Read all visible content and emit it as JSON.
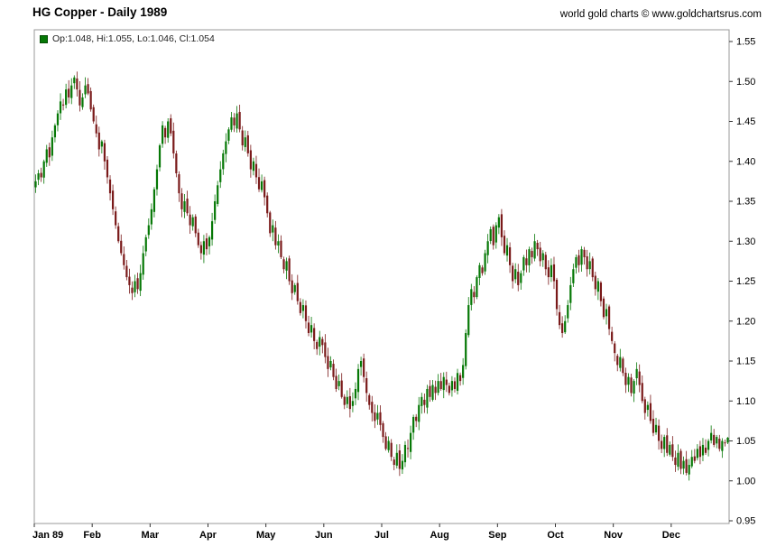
{
  "header": {
    "title": "HG Copper - Daily 1989",
    "watermark": "world gold charts © www.goldchartsrus.com"
  },
  "legend": {
    "label": "Op:1.048, Hi:1.055, Lo:1.046, Cl:1.054",
    "swatch_color": "#067806"
  },
  "chart_data": {
    "type": "candlestick",
    "title": "HG Copper - Daily 1989",
    "xlabel": "",
    "ylabel": "",
    "ylim": [
      0.95,
      1.55
    ],
    "y_ticks": [
      0.95,
      1.0,
      1.05,
      1.1,
      1.15,
      1.2,
      1.25,
      1.3,
      1.35,
      1.4,
      1.45,
      1.5,
      1.55
    ],
    "x_tick_labels": [
      "Jan 89",
      "Feb",
      "Mar",
      "Apr",
      "May",
      "Jun",
      "Jul",
      "Aug",
      "Sep",
      "Oct",
      "Nov",
      "Dec"
    ],
    "days_per_month": 21,
    "up_color": "#067806",
    "down_color": "#7a1a1a",
    "grid": false,
    "legend_position": "top-left",
    "last_bar": {
      "open": 1.048,
      "high": 1.055,
      "low": 1.046,
      "close": 1.054
    },
    "closes": [
      1.375,
      1.385,
      1.38,
      1.4,
      1.415,
      1.405,
      1.43,
      1.445,
      1.46,
      1.475,
      1.47,
      1.49,
      1.48,
      1.495,
      1.505,
      1.49,
      1.47,
      1.48,
      1.495,
      1.485,
      1.465,
      1.45,
      1.435,
      1.415,
      1.425,
      1.4,
      1.38,
      1.36,
      1.34,
      1.32,
      1.3,
      1.285,
      1.27,
      1.255,
      1.245,
      1.235,
      1.25,
      1.24,
      1.26,
      1.285,
      1.305,
      1.32,
      1.34,
      1.365,
      1.39,
      1.42,
      1.445,
      1.43,
      1.45,
      1.435,
      1.41,
      1.385,
      1.36,
      1.34,
      1.35,
      1.335,
      1.32,
      1.33,
      1.31,
      1.295,
      1.285,
      1.3,
      1.29,
      1.305,
      1.325,
      1.35,
      1.37,
      1.39,
      1.41,
      1.425,
      1.44,
      1.455,
      1.445,
      1.46,
      1.44,
      1.42,
      1.43,
      1.41,
      1.39,
      1.4,
      1.38,
      1.365,
      1.375,
      1.355,
      1.335,
      1.31,
      1.32,
      1.295,
      1.3,
      1.28,
      1.265,
      1.275,
      1.25,
      1.235,
      1.245,
      1.225,
      1.21,
      1.22,
      1.2,
      1.185,
      1.195,
      1.175,
      1.165,
      1.18,
      1.17,
      1.155,
      1.14,
      1.15,
      1.13,
      1.115,
      1.125,
      1.105,
      1.095,
      1.105,
      1.09,
      1.1,
      1.115,
      1.14,
      1.15,
      1.13,
      1.11,
      1.095,
      1.085,
      1.075,
      1.085,
      1.07,
      1.055,
      1.04,
      1.05,
      1.03,
      1.02,
      1.035,
      1.015,
      1.025,
      1.045,
      1.04,
      1.06,
      1.08,
      1.075,
      1.095,
      1.105,
      1.095,
      1.115,
      1.105,
      1.12,
      1.11,
      1.125,
      1.115,
      1.13,
      1.12,
      1.11,
      1.125,
      1.115,
      1.135,
      1.125,
      1.145,
      1.185,
      1.22,
      1.24,
      1.23,
      1.255,
      1.27,
      1.26,
      1.285,
      1.3,
      1.315,
      1.295,
      1.32,
      1.33,
      1.305,
      1.285,
      1.295,
      1.27,
      1.25,
      1.265,
      1.245,
      1.26,
      1.28,
      1.27,
      1.29,
      1.28,
      1.3,
      1.29,
      1.275,
      1.285,
      1.265,
      1.255,
      1.27,
      1.25,
      1.215,
      1.195,
      1.185,
      1.2,
      1.22,
      1.245,
      1.265,
      1.28,
      1.27,
      1.29,
      1.28,
      1.265,
      1.275,
      1.255,
      1.24,
      1.25,
      1.225,
      1.205,
      1.215,
      1.19,
      1.175,
      1.16,
      1.145,
      1.155,
      1.135,
      1.12,
      1.13,
      1.11,
      1.125,
      1.14,
      1.12,
      1.1,
      1.085,
      1.095,
      1.075,
      1.06,
      1.07,
      1.05,
      1.04,
      1.055,
      1.035,
      1.045,
      1.03,
      1.02,
      1.035,
      1.015,
      1.025,
      1.01,
      1.02,
      1.03,
      1.025,
      1.04,
      1.03,
      1.045,
      1.035,
      1.05,
      1.06,
      1.045,
      1.055,
      1.04,
      1.05,
      1.048,
      1.054
    ]
  }
}
